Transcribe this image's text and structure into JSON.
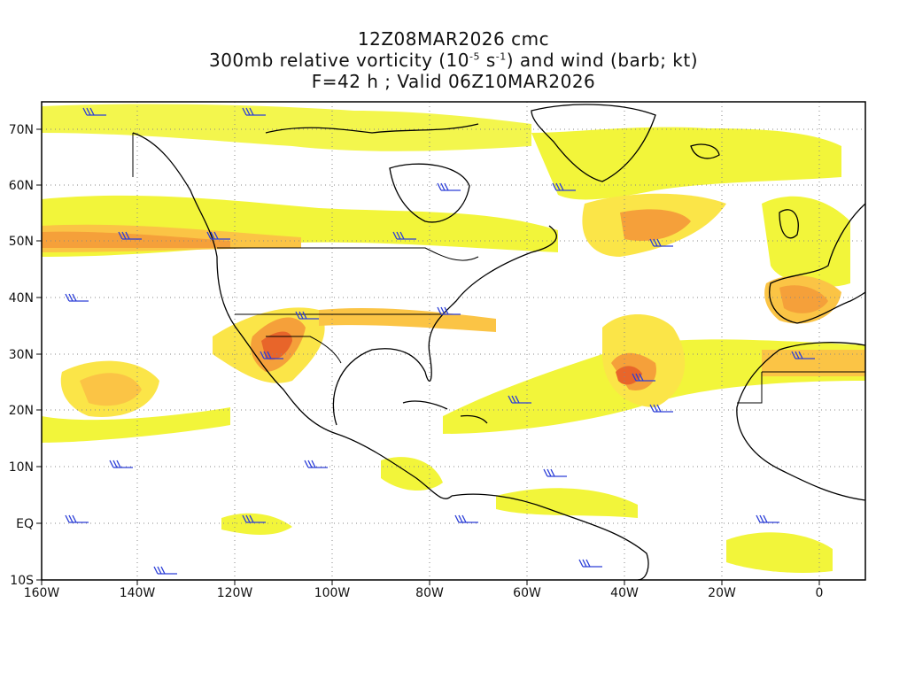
{
  "title": {
    "line1": "12Z08MAR2026 cmc",
    "line2_pre": "300mb relative vorticity (10",
    "line2_exp1": "-5",
    "line2_mid": " s",
    "line2_exp2": "-1",
    "line2_post": ") and wind (barb; kt)",
    "line3": "F=42 h ; Valid 06Z10MAR2026"
  },
  "axes": {
    "lon_labels": [
      "160W",
      "140W",
      "120W",
      "100W",
      "80W",
      "60W",
      "40W",
      "20W",
      "0"
    ],
    "lat_labels": [
      "70N",
      "60N",
      "50N",
      "40N",
      "30N",
      "20N",
      "10N",
      "EQ",
      "10S"
    ]
  },
  "colors": {
    "shade_light": "#f2f53a",
    "shade_yellow": "#fbe548",
    "shade_orange1": "#fbc445",
    "shade_orange2": "#f5a03a",
    "shade_red": "#e8652a",
    "barb": "#2c3fd8",
    "coast": "#000000",
    "grid": "#888888"
  },
  "icons": {
    "wind_barb": "wind-barb-icon"
  }
}
